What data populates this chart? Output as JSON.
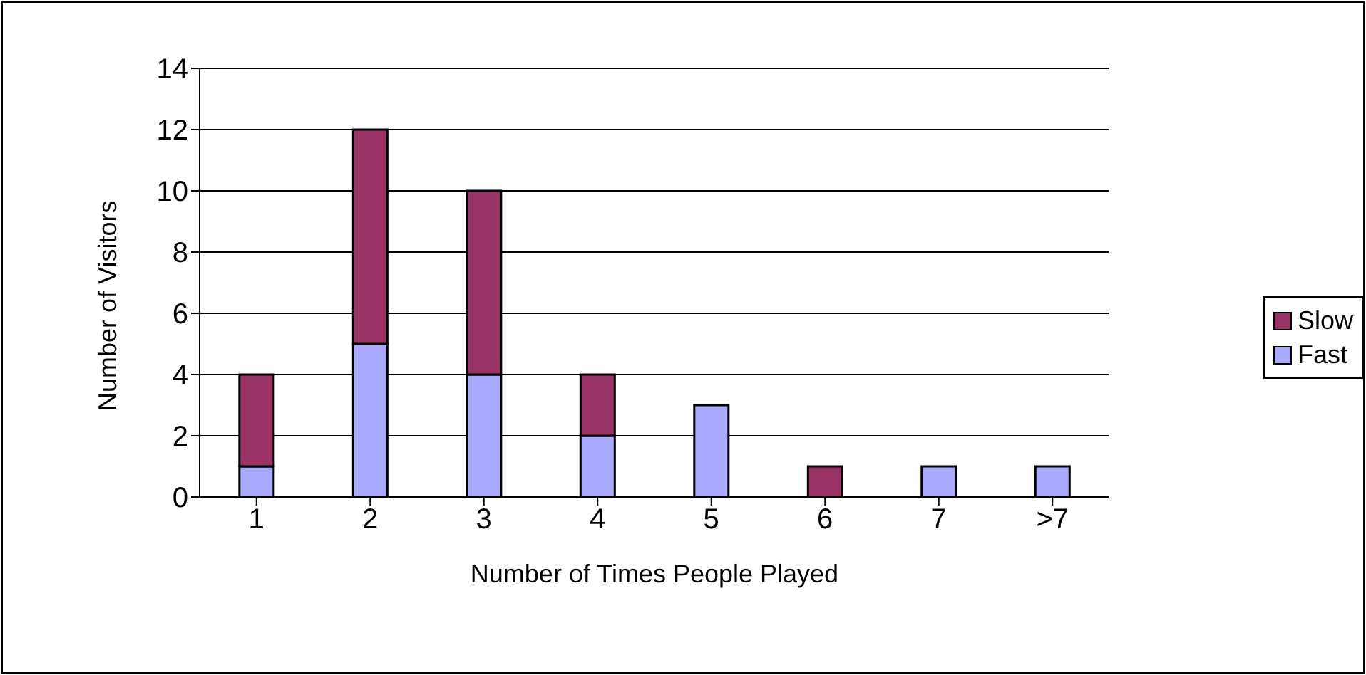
{
  "chart_data": {
    "type": "bar",
    "stacked": true,
    "xlabel": "Number of Times People Played",
    "ylabel": "Number of Visitors",
    "categories": [
      "1",
      "2",
      "3",
      "4",
      "5",
      "6",
      "7",
      ">7"
    ],
    "series": [
      {
        "name": "Fast",
        "color": "#aaaaff",
        "values": [
          1,
          5,
          4,
          2,
          3,
          0,
          1,
          1
        ]
      },
      {
        "name": "Slow",
        "color": "#993366",
        "values": [
          3,
          7,
          6,
          2,
          0,
          1,
          0,
          0
        ]
      }
    ],
    "ylim": [
      0,
      14
    ],
    "yticks": [
      0,
      2,
      4,
      6,
      8,
      10,
      12,
      14
    ],
    "grid": "y",
    "legend": "right"
  }
}
